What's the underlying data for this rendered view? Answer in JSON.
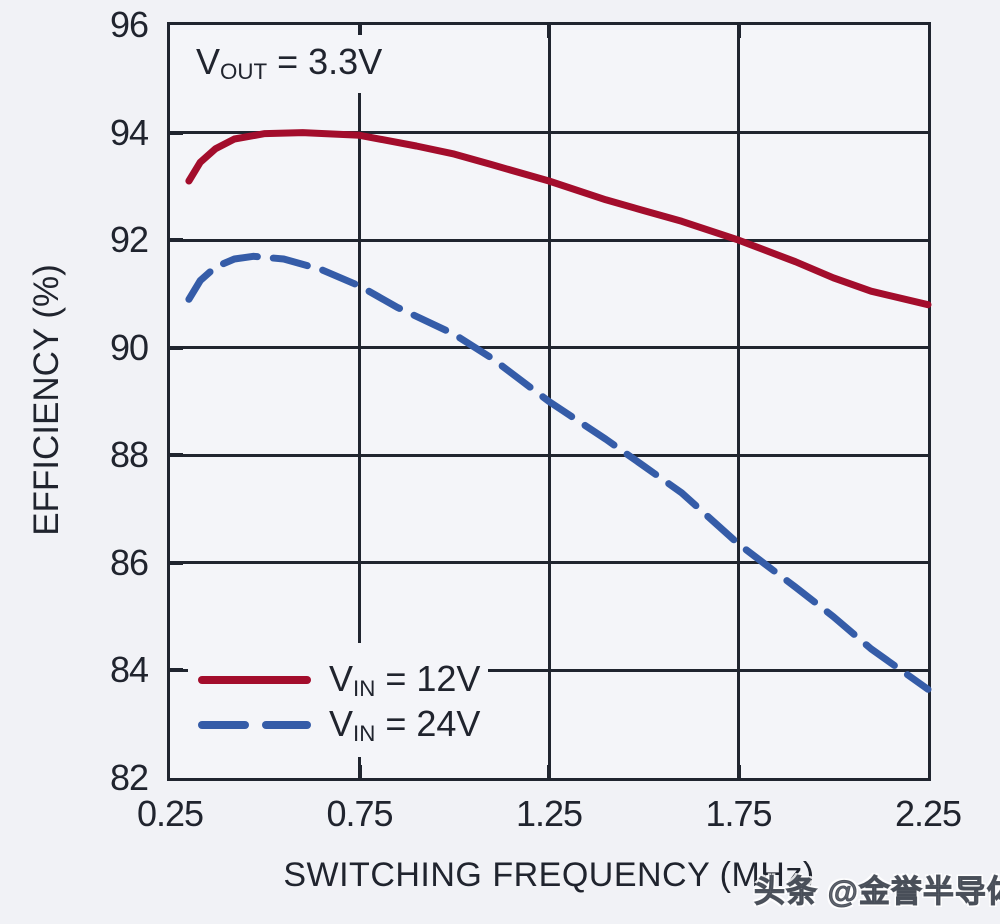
{
  "colors": {
    "background": "#f1f2f6",
    "plot_background": "#f4f5f9",
    "axis": "#20252f",
    "text": "#20242e",
    "series_red": "#a30d2c",
    "series_blue": "#355ca8",
    "watermark_gray": "#5a5f69"
  },
  "page": {
    "watermark": "头条 @金誉半导体"
  },
  "chart_data": {
    "type": "line",
    "xlabel": "SWITCHING FREQUENCY (MHz)",
    "ylabel": "EFFICIENCY (%)",
    "annotation": {
      "pre": "V",
      "sub": "OUT",
      "post": " = 3.3V"
    },
    "xlim": [
      0.25,
      2.25
    ],
    "ylim": [
      82,
      96
    ],
    "x_ticks": [
      0.25,
      0.75,
      1.25,
      1.75,
      2.25
    ],
    "x_tick_labels": [
      "0.25",
      "0.75",
      "1.25",
      "1.75",
      "2.25"
    ],
    "y_ticks": [
      96,
      94,
      92,
      90,
      88,
      86,
      84,
      82
    ],
    "y_tick_labels": [
      "96",
      "94",
      "92",
      "90",
      "88",
      "86",
      "84",
      "82"
    ],
    "grid": true,
    "legend_position": "bottom-left",
    "series": [
      {
        "name": "VIN = 12V",
        "legend": {
          "pre": "V",
          "sub": "IN",
          "post": " = 12V"
        },
        "style": "solid",
        "color": "#a30d2c",
        "points": [
          [
            0.3,
            93.1
          ],
          [
            0.33,
            93.45
          ],
          [
            0.37,
            93.7
          ],
          [
            0.42,
            93.88
          ],
          [
            0.5,
            93.98
          ],
          [
            0.6,
            94.0
          ],
          [
            0.75,
            93.95
          ],
          [
            0.9,
            93.75
          ],
          [
            1.0,
            93.6
          ],
          [
            1.1,
            93.4
          ],
          [
            1.25,
            93.1
          ],
          [
            1.4,
            92.75
          ],
          [
            1.5,
            92.55
          ],
          [
            1.6,
            92.35
          ],
          [
            1.75,
            92.0
          ],
          [
            1.9,
            91.6
          ],
          [
            2.0,
            91.3
          ],
          [
            2.1,
            91.05
          ],
          [
            2.25,
            90.8
          ]
        ]
      },
      {
        "name": "VIN = 24V",
        "legend": {
          "pre": "V",
          "sub": "IN",
          "post": " = 24V"
        },
        "style": "dashed",
        "color": "#355ca8",
        "points": [
          [
            0.3,
            90.9
          ],
          [
            0.33,
            91.25
          ],
          [
            0.37,
            91.5
          ],
          [
            0.42,
            91.65
          ],
          [
            0.47,
            91.7
          ],
          [
            0.55,
            91.65
          ],
          [
            0.65,
            91.45
          ],
          [
            0.75,
            91.15
          ],
          [
            0.85,
            90.75
          ],
          [
            1.0,
            90.25
          ],
          [
            1.1,
            89.8
          ],
          [
            1.25,
            89.0
          ],
          [
            1.4,
            88.3
          ],
          [
            1.5,
            87.8
          ],
          [
            1.6,
            87.3
          ],
          [
            1.75,
            86.35
          ],
          [
            1.9,
            85.55
          ],
          [
            2.0,
            85.0
          ],
          [
            2.1,
            84.4
          ],
          [
            2.25,
            83.65
          ]
        ]
      }
    ]
  }
}
